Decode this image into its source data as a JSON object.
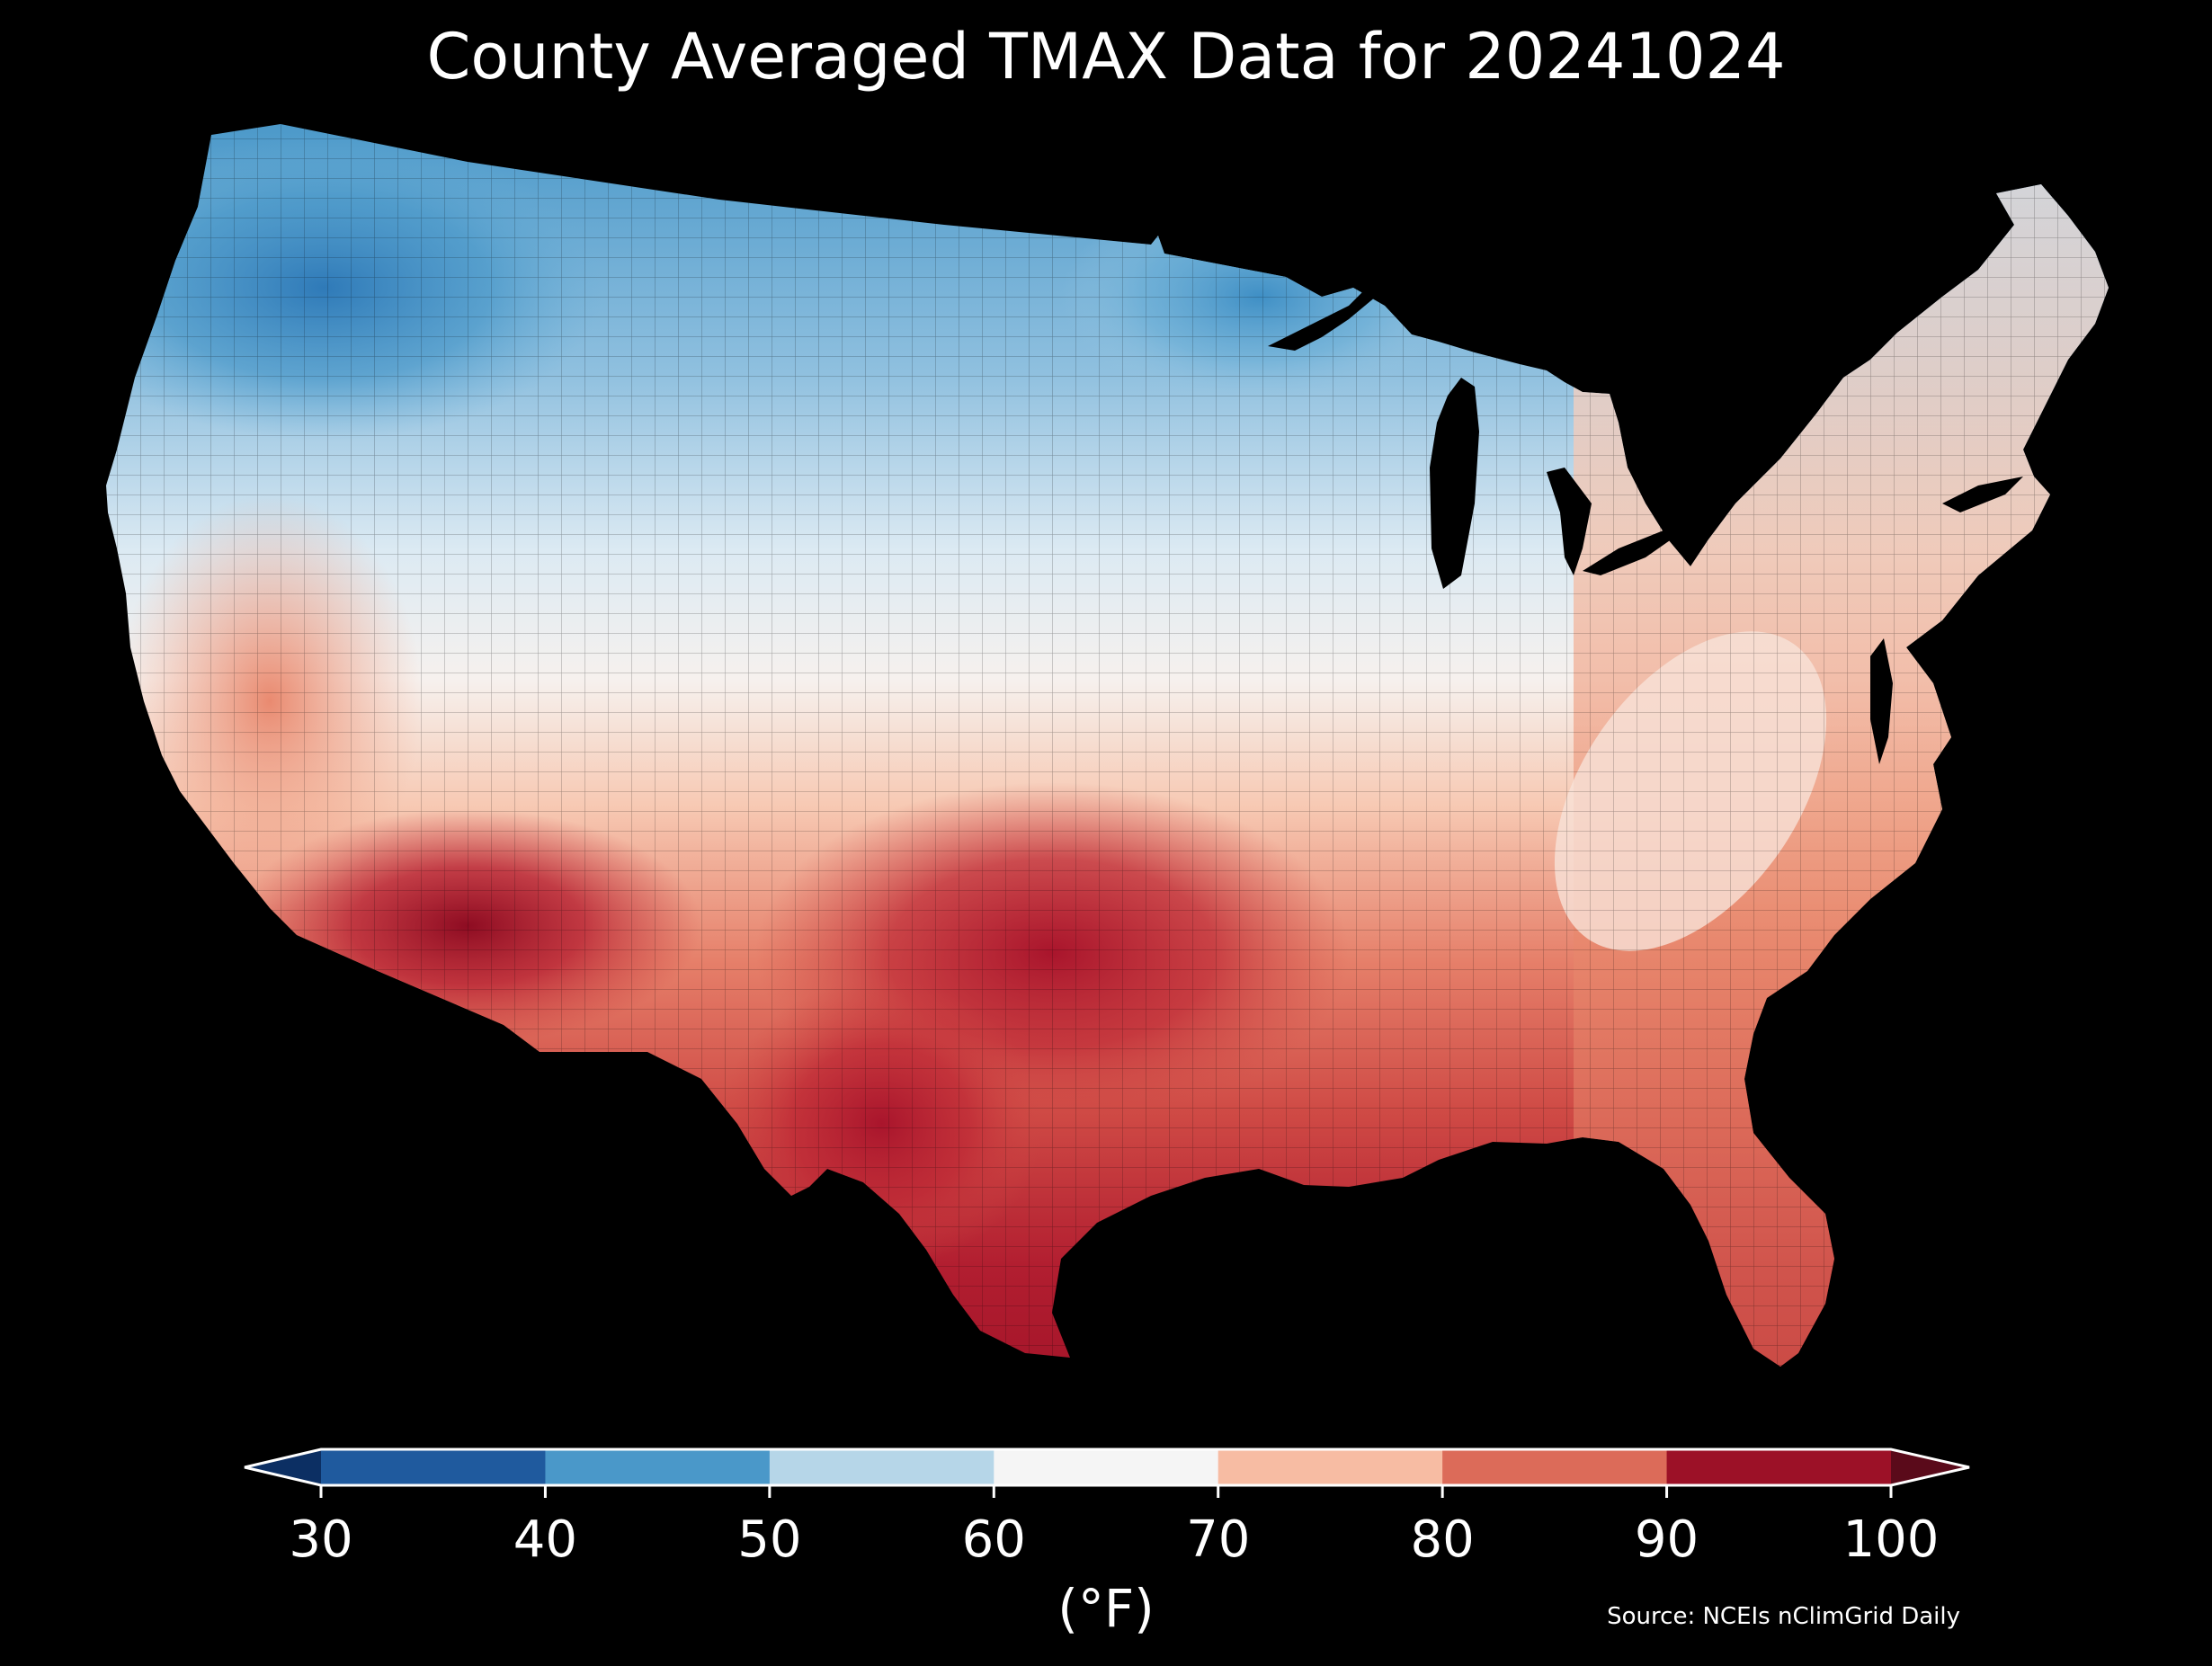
{
  "title": "County Averaged TMAX Data for 20241024",
  "colorbar": {
    "unit": "(°F)",
    "ticks": [
      "30",
      "40",
      "50",
      "60",
      "70",
      "80",
      "90",
      "100"
    ],
    "bins": [
      {
        "range": "<30",
        "color": "#0c2f63"
      },
      {
        "range": "30-40",
        "color": "#1f5a9e"
      },
      {
        "range": "40-50",
        "color": "#4a98c9"
      },
      {
        "range": "50-60",
        "color": "#b6d6e8"
      },
      {
        "range": "60-70",
        "color": "#f5f5f5"
      },
      {
        "range": "70-80",
        "color": "#f7bca3"
      },
      {
        "range": "80-90",
        "color": "#dc6b59"
      },
      {
        "range": "90-100",
        "color": "#9c1127"
      },
      {
        "range": ">100",
        "color": "#5a0a1a"
      }
    ]
  },
  "source": "Source: NCEIs nClimGrid Daily"
}
